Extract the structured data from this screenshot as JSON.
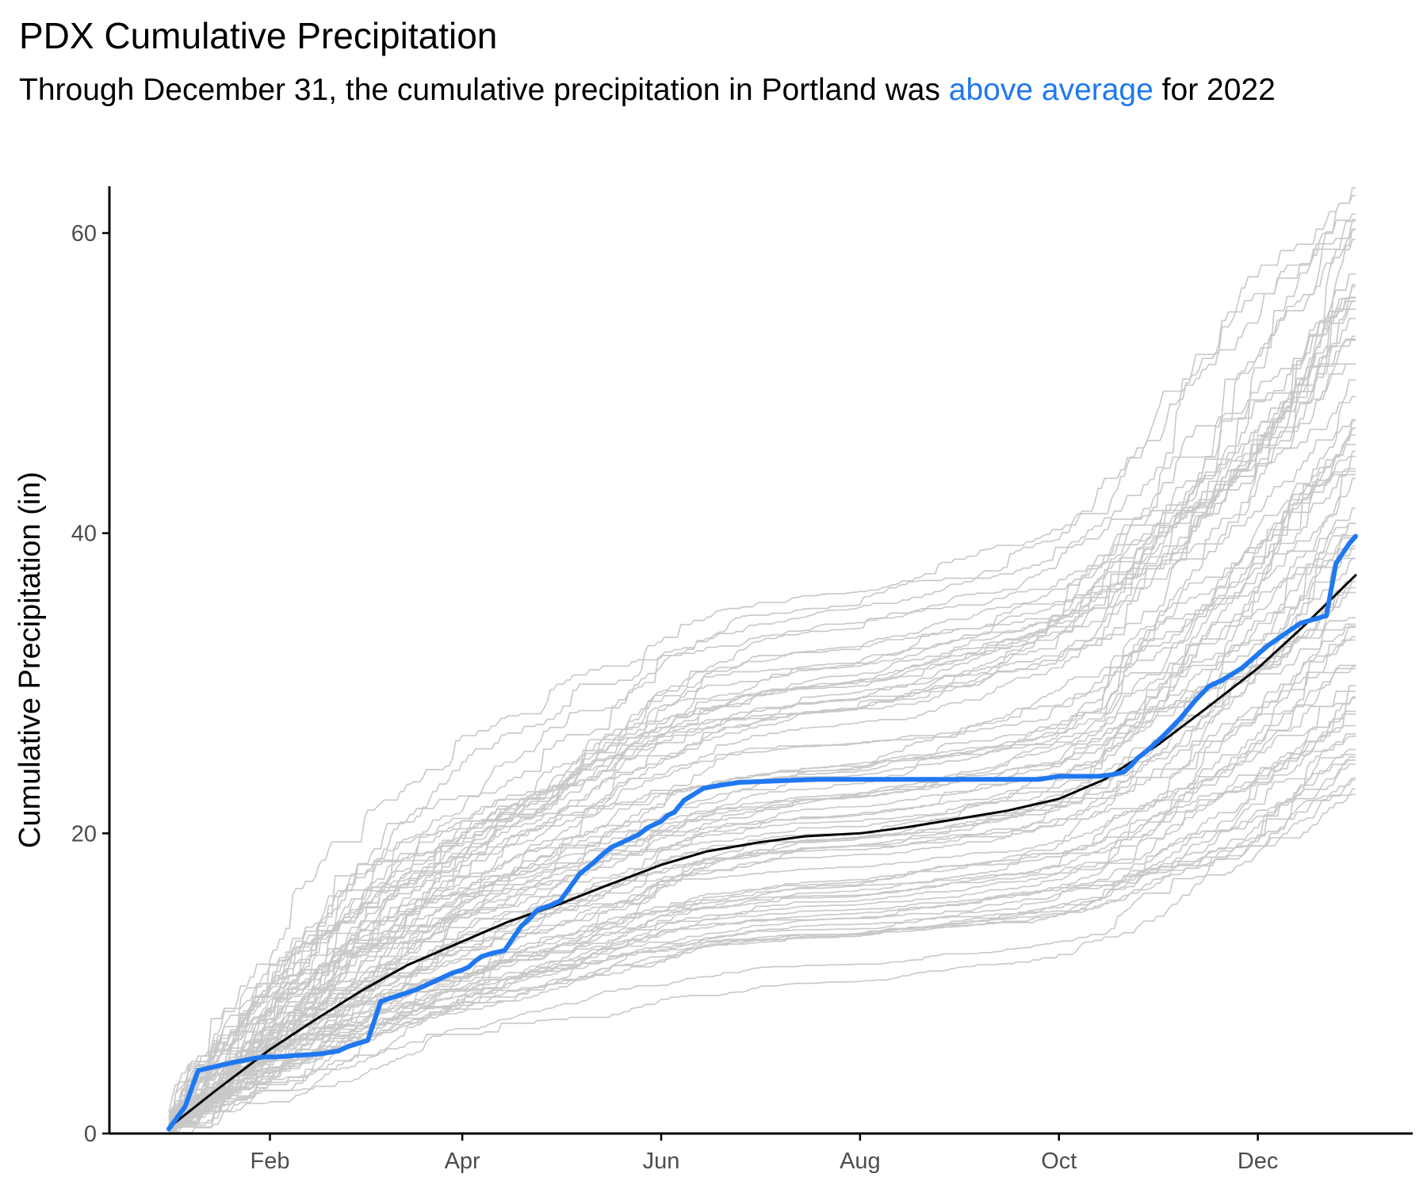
{
  "title": "PDX Cumulative Precipitation",
  "subtitle": {
    "before": "Through December 31, the cumulative precipitation in Portland was ",
    "highlight": "above average",
    "after": " for 2022"
  },
  "colors": {
    "current_year": "#1f78f0",
    "historical": "#c8c8c8",
    "average": "#000000",
    "axis": "#000000",
    "tick_label": "#4d4d4d"
  },
  "chart_data": {
    "type": "line",
    "title": "PDX Cumulative Precipitation",
    "xlabel": "",
    "ylabel": "Cumulative Precipitation (in)",
    "x_unit": "day of year",
    "xlim": [
      1,
      365
    ],
    "ylim": [
      0,
      63
    ],
    "grid": false,
    "legend": "none",
    "x_ticks": [
      {
        "label": "Feb",
        "value": 32
      },
      {
        "label": "Apr",
        "value": 91
      },
      {
        "label": "Jun",
        "value": 152
      },
      {
        "label": "Aug",
        "value": 213
      },
      {
        "label": "Oct",
        "value": 274
      },
      {
        "label": "Dec",
        "value": 335
      }
    ],
    "y_ticks": [
      {
        "label": "0",
        "value": 0
      },
      {
        "label": "20",
        "value": 20
      },
      {
        "label": "40",
        "value": 40
      },
      {
        "label": "60",
        "value": 60
      }
    ],
    "historical_years": {
      "color": "#c8c8c8",
      "count_shown": 75,
      "year_end_range": [
        22.5,
        63.5
      ],
      "note_values_estimated": true
    },
    "series": [
      {
        "role": "average",
        "color": "#000000",
        "x": [
          1,
          15,
          32,
          46,
          60,
          74,
          91,
          105,
          121,
          135,
          152,
          166,
          182,
          196,
          213,
          227,
          244,
          258,
          274,
          288,
          305,
          319,
          335,
          349,
          365
        ],
        "y": [
          0.4,
          2.8,
          5.6,
          7.6,
          9.5,
          11.2,
          12.8,
          14.1,
          15.3,
          16.5,
          17.9,
          18.8,
          19.4,
          19.8,
          20.0,
          20.4,
          21.0,
          21.5,
          22.3,
          23.6,
          26.0,
          28.3,
          31.0,
          33.8,
          37.2
        ]
      },
      {
        "role": "current_year",
        "color": "#1f78f0",
        "x": [
          1,
          4,
          6,
          10,
          14,
          18,
          20,
          27,
          30,
          34,
          40,
          47,
          53,
          56,
          59,
          62,
          66,
          70,
          73,
          77,
          80,
          85,
          88,
          91,
          93,
          95,
          97,
          100,
          104,
          109,
          112,
          114,
          118,
          121,
          124,
          127,
          131,
          134,
          137,
          140,
          145,
          148,
          152,
          154,
          156,
          159,
          165,
          170,
          176,
          200,
          230,
          255,
          268,
          274,
          280,
          286,
          290,
          294,
          296,
          298,
          301,
          306,
          311,
          316,
          320,
          324,
          330,
          338,
          348,
          356,
          359,
          363,
          365
        ],
        "y": [
          0.3,
          1.2,
          1.8,
          4.2,
          4.4,
          4.6,
          4.7,
          5.0,
          5.1,
          5.1,
          5.2,
          5.3,
          5.5,
          5.8,
          6.0,
          6.2,
          8.8,
          9.1,
          9.3,
          9.6,
          9.9,
          10.4,
          10.7,
          10.9,
          11.1,
          11.5,
          11.8,
          12.0,
          12.2,
          13.8,
          14.4,
          14.9,
          15.2,
          15.5,
          16.4,
          17.3,
          18.0,
          18.6,
          19.1,
          19.4,
          19.9,
          20.4,
          20.8,
          21.2,
          21.4,
          22.2,
          23.0,
          23.2,
          23.4,
          23.6,
          23.6,
          23.6,
          23.6,
          23.8,
          23.8,
          23.8,
          23.9,
          24.1,
          24.5,
          25.0,
          25.5,
          26.5,
          27.6,
          28.9,
          29.8,
          30.2,
          31.0,
          32.5,
          34.0,
          34.5,
          38.0,
          39.3,
          39.8
        ]
      }
    ]
  }
}
